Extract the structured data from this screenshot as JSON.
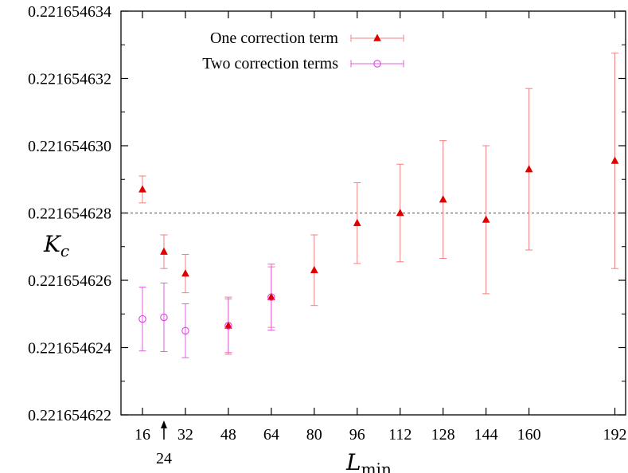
{
  "chart_data": {
    "type": "scatter",
    "xlabel": "L",
    "xlabel_subscript": "min",
    "ylabel": "K",
    "ylabel_subscript": "c",
    "x_ticks": [
      16,
      32,
      48,
      64,
      80,
      96,
      112,
      128,
      144,
      160,
      192
    ],
    "x_extra_tick": {
      "value": 24,
      "label": "24"
    },
    "xlim": [
      8,
      196
    ],
    "ylim": [
      0.221654622,
      0.221654634
    ],
    "y_ticks": [
      0.221654622,
      0.221654624,
      0.221654626,
      0.221654628,
      0.22165463,
      0.221654632,
      0.221654634
    ],
    "y_tick_labels": [
      "0.221654622",
      "0.221654624",
      "0.221654626",
      "0.221654628",
      "0.221654630",
      "0.221654632",
      "0.221654634"
    ],
    "reference_line": {
      "y": 0.221654628,
      "color": "#4040e0",
      "style": "dashed"
    },
    "legend_position": "top-left",
    "series": [
      {
        "name": "One correction term",
        "marker": "filled-triangle",
        "color": "#e00000",
        "errbar_color": "#f08080",
        "points": [
          {
            "x": 16,
            "y": 0.2216546287,
            "err": 4e-10
          },
          {
            "x": 24,
            "y": 0.22165462685,
            "err": 5e-10
          },
          {
            "x": 32,
            "y": 0.2216546262,
            "err": 5.7e-10
          },
          {
            "x": 48,
            "y": 0.22165462465,
            "err": 8.5e-10
          },
          {
            "x": 64,
            "y": 0.2216546255,
            "err": 9e-10
          },
          {
            "x": 80,
            "y": 0.2216546263,
            "err": 1.05e-09
          },
          {
            "x": 96,
            "y": 0.2216546277,
            "err": 1.2e-09
          },
          {
            "x": 112,
            "y": 0.221654628,
            "err": 1.45e-09
          },
          {
            "x": 128,
            "y": 0.2216546284,
            "err": 1.75e-09
          },
          {
            "x": 144,
            "y": 0.2216546278,
            "err": 2.2e-09
          },
          {
            "x": 160,
            "y": 0.2216546293,
            "err": 2.4e-09
          },
          {
            "x": 192,
            "y": 0.22165462955,
            "err": 3.2e-09
          }
        ]
      },
      {
        "name": "Two correction terms",
        "marker": "open-circle",
        "color": "#e040e0",
        "errbar_color": "#e060e0",
        "points": [
          {
            "x": 16,
            "y": 0.22165462485,
            "err": 9.5e-10
          },
          {
            "x": 24,
            "y": 0.2216546249,
            "err": 1.02e-09
          },
          {
            "x": 32,
            "y": 0.2216546245,
            "err": 8e-10
          },
          {
            "x": 48,
            "y": 0.22165462465,
            "err": 8e-10
          },
          {
            "x": 64,
            "y": 0.2216546255,
            "err": 9.8e-10
          }
        ]
      }
    ]
  }
}
